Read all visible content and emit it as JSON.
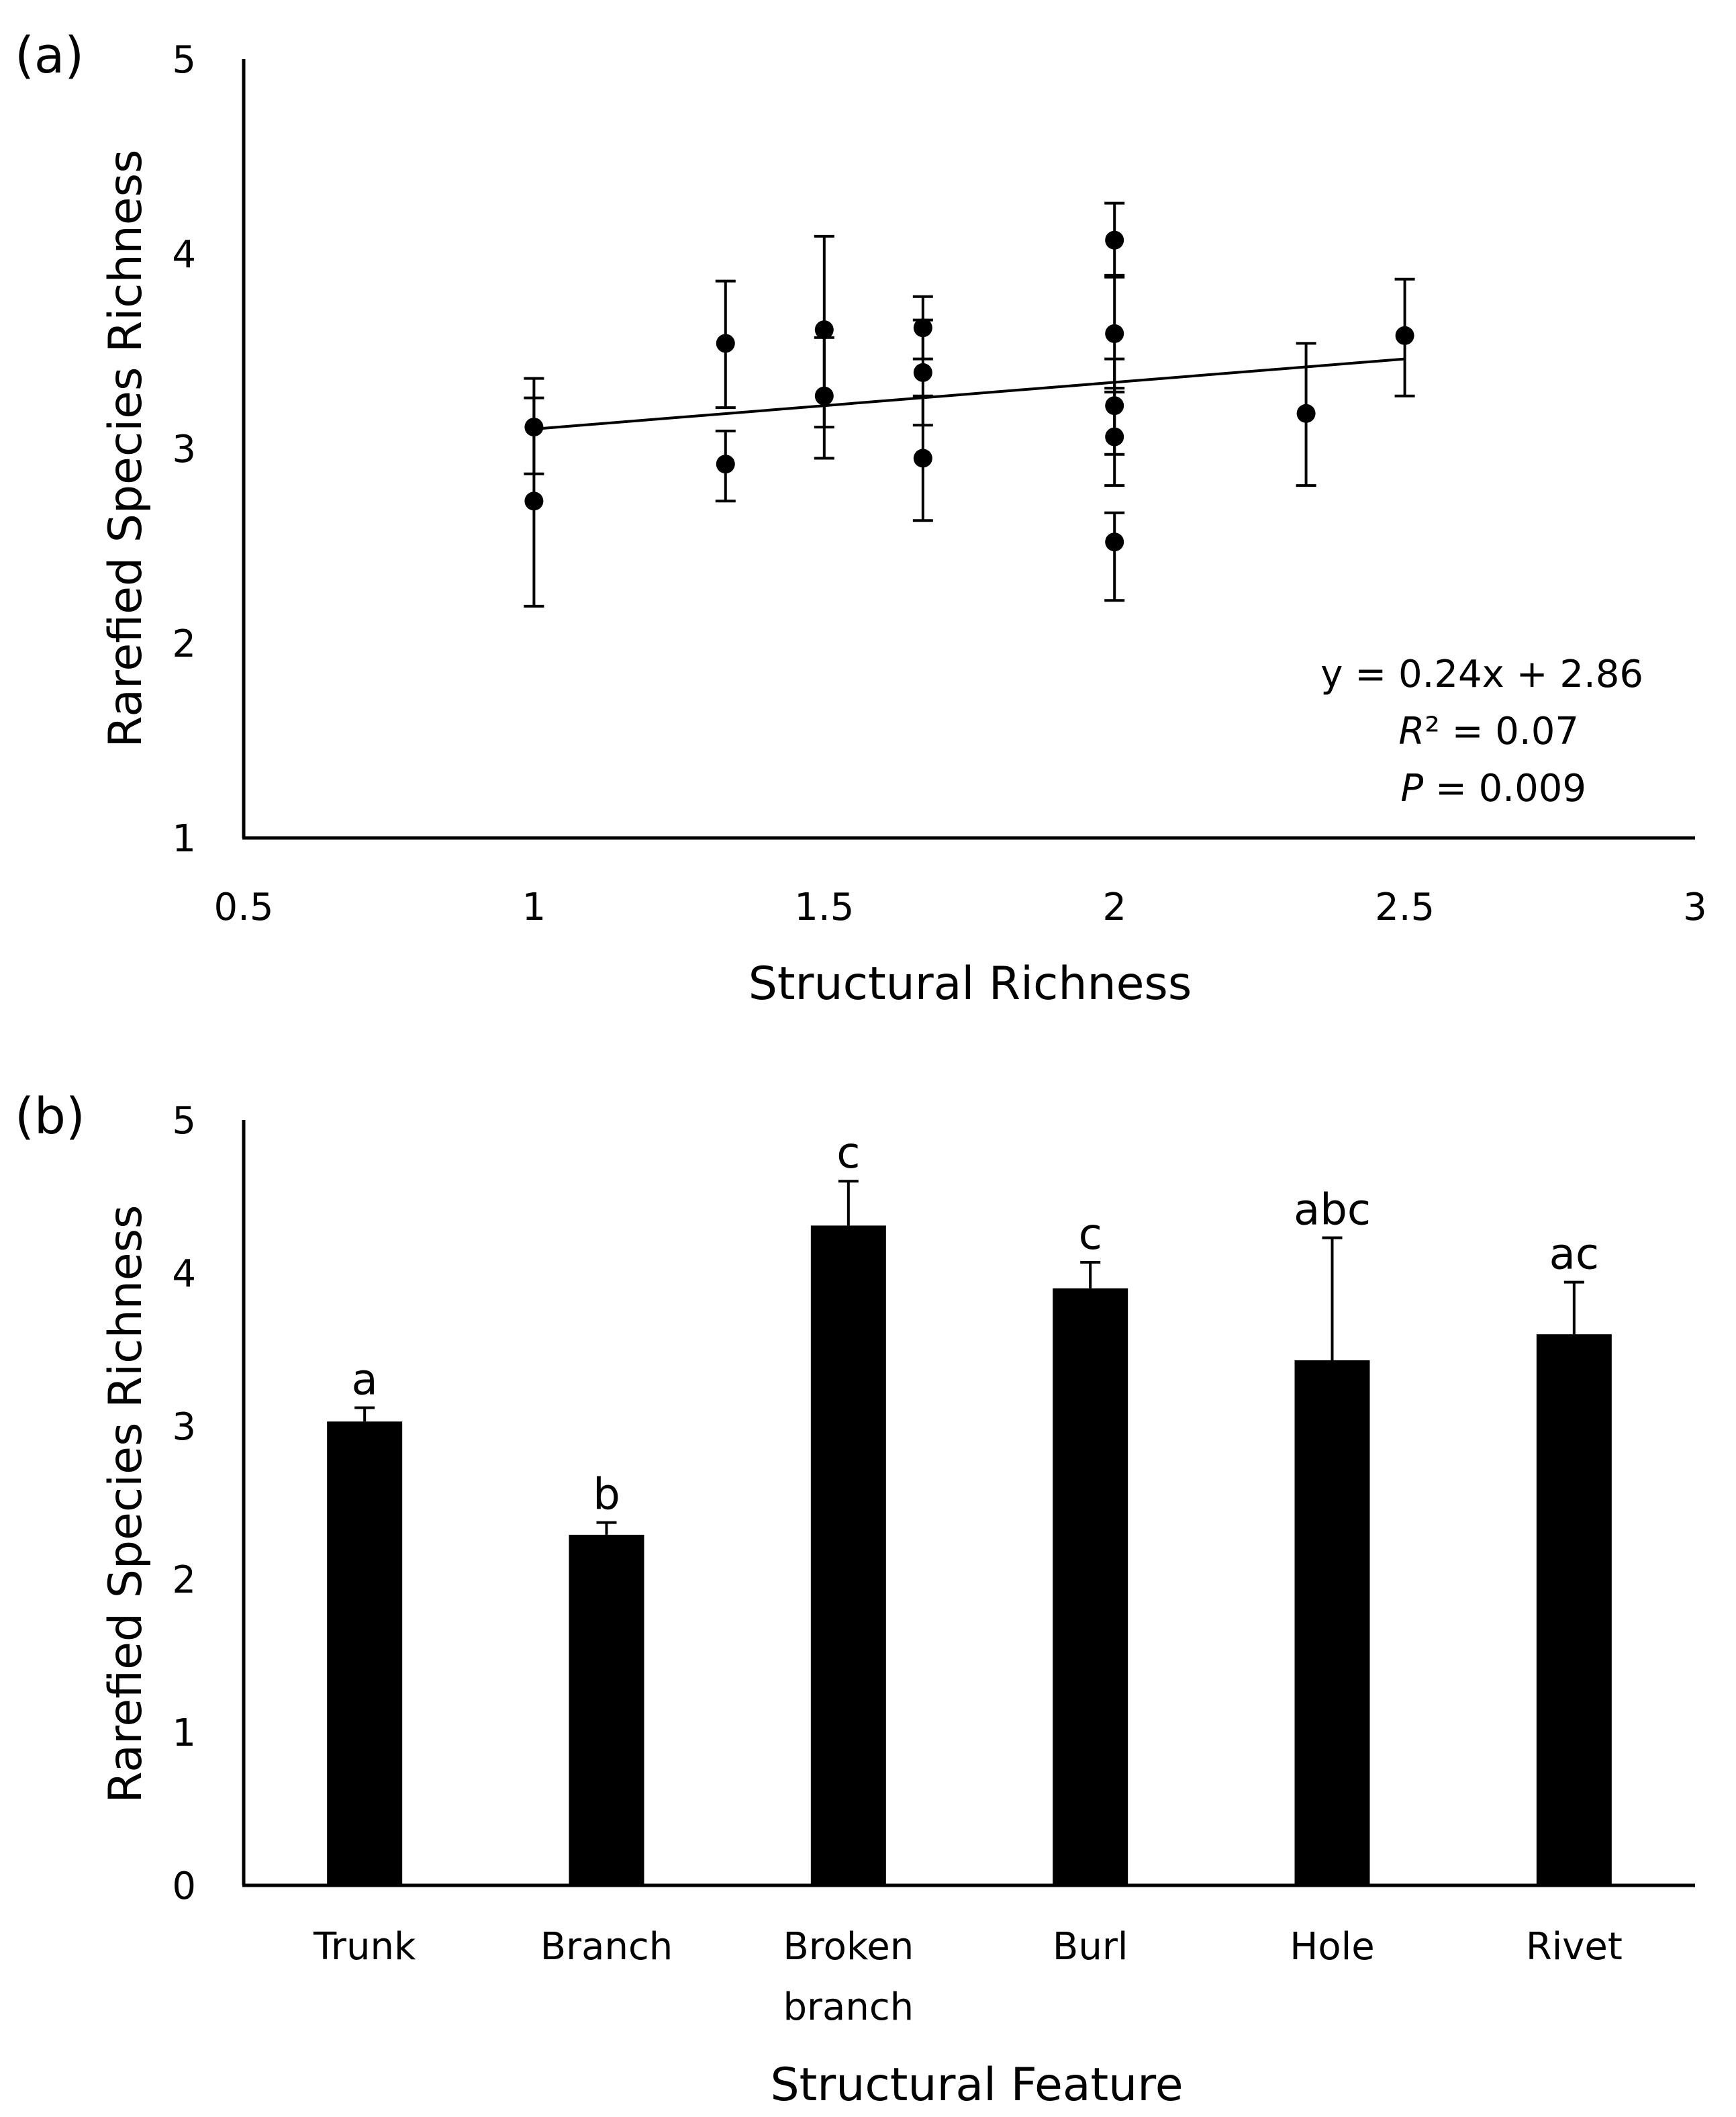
{
  "chart_data": [
    {
      "panel_label": "(a)",
      "type": "scatter",
      "xlabel": "Structural Richness",
      "ylabel": "Rarefied Species Richness",
      "xlim": [
        0.5,
        3
      ],
      "ylim": [
        1,
        5
      ],
      "xticks": [
        0.5,
        1,
        1.5,
        2,
        2.5,
        3
      ],
      "xtick_labels": [
        "0.5",
        "1",
        "1.5",
        "2",
        "2.5",
        "3"
      ],
      "yticks": [
        1,
        2,
        3,
        4,
        5
      ],
      "ytick_labels": [
        "1",
        "2",
        "3",
        "4",
        "5"
      ],
      "grid": false,
      "points": [
        {
          "x": 1.0,
          "y": 3.11,
          "err_low": 2.87,
          "err_high": 3.36
        },
        {
          "x": 1.0,
          "y": 2.73,
          "err_low": 2.19,
          "err_high": 3.26
        },
        {
          "x": 1.33,
          "y": 3.54,
          "err_low": 3.21,
          "err_high": 3.86
        },
        {
          "x": 1.33,
          "y": 2.92,
          "err_low": 2.73,
          "err_high": 3.09
        },
        {
          "x": 1.5,
          "y": 3.61,
          "err_low": 3.11,
          "err_high": 4.09
        },
        {
          "x": 1.5,
          "y": 3.27,
          "err_low": 2.95,
          "err_high": 3.57
        },
        {
          "x": 1.67,
          "y": 3.62,
          "err_low": 3.46,
          "err_high": 3.78
        },
        {
          "x": 1.67,
          "y": 3.39,
          "err_low": 3.12,
          "err_high": 3.66
        },
        {
          "x": 1.67,
          "y": 2.95,
          "err_low": 2.63,
          "err_high": 3.27
        },
        {
          "x": 2.0,
          "y": 4.07,
          "err_low": 3.88,
          "err_high": 4.26
        },
        {
          "x": 2.0,
          "y": 3.59,
          "err_low": 3.29,
          "err_high": 3.89
        },
        {
          "x": 2.0,
          "y": 3.22,
          "err_low": 2.97,
          "err_high": 3.46
        },
        {
          "x": 2.0,
          "y": 3.06,
          "err_low": 2.81,
          "err_high": 3.31
        },
        {
          "x": 2.0,
          "y": 2.52,
          "err_low": 2.22,
          "err_high": 2.67
        },
        {
          "x": 2.33,
          "y": 3.18,
          "err_low": 2.81,
          "err_high": 3.54
        },
        {
          "x": 2.5,
          "y": 3.58,
          "err_low": 3.27,
          "err_high": 3.87
        }
      ],
      "trendline": {
        "slope": 0.24,
        "intercept": 2.86,
        "x_range": [
          1,
          2.5
        ]
      },
      "annotations": {
        "equation": "y = 0.24x + 2.86",
        "r2_symbol": "R",
        "r2_rest": "² = 0.07",
        "p_symbol": "P",
        "p_rest": " = 0.009"
      }
    },
    {
      "panel_label": "(b)",
      "type": "bar",
      "xlabel": "Structural Feature",
      "ylabel": "Rarefied Species Richness",
      "ylim": [
        0,
        5
      ],
      "yticks": [
        0,
        1,
        2,
        3,
        4,
        5
      ],
      "ytick_labels": [
        "0",
        "1",
        "2",
        "3",
        "4",
        "5"
      ],
      "grid": false,
      "categories": [
        [
          "Trunk"
        ],
        [
          "Branch"
        ],
        [
          "Broken",
          "branch"
        ],
        [
          "Burl"
        ],
        [
          "Hole"
        ],
        [
          "Rivet"
        ]
      ],
      "values": [
        3.03,
        2.29,
        4.31,
        3.9,
        3.43,
        3.6
      ],
      "error_upper": [
        3.12,
        2.37,
        4.6,
        4.07,
        4.23,
        3.94
      ],
      "significance_letters": [
        "a",
        "b",
        "c",
        "c",
        "abc",
        "ac"
      ]
    }
  ]
}
